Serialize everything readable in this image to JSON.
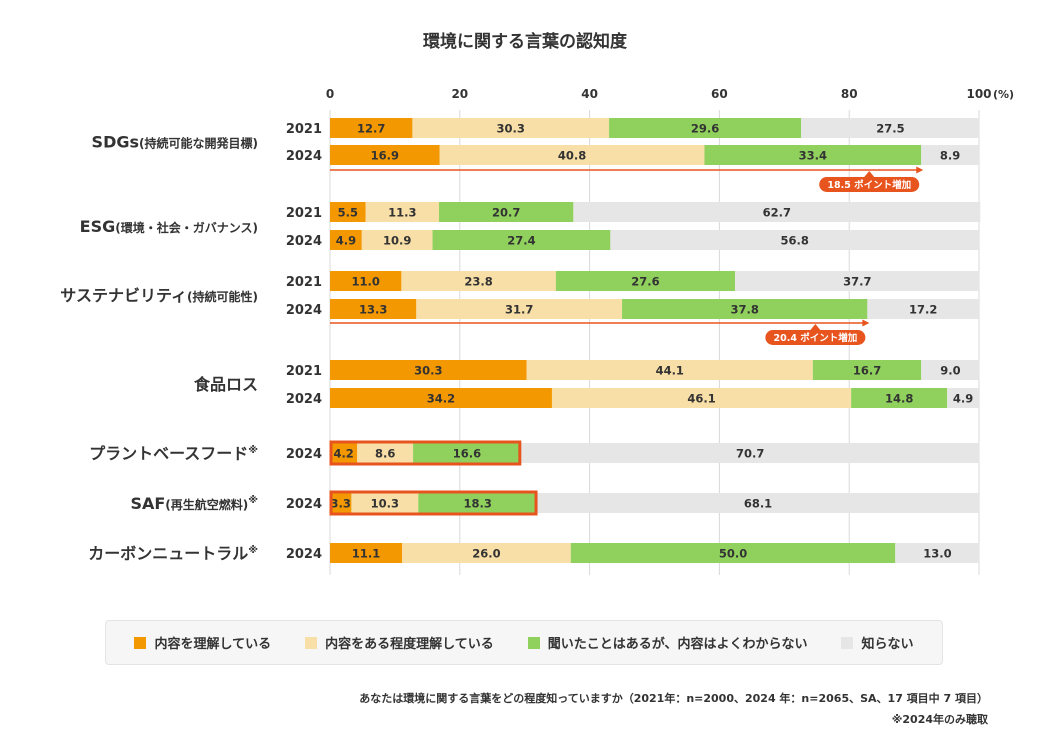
{
  "chart_data": {
    "type": "bar",
    "orientation": "horizontal",
    "stacked": true,
    "title": "環境に関する言葉の認知度",
    "x_ticks": [
      "0",
      "20",
      "40",
      "60",
      "80",
      "100"
    ],
    "x_unit": "(%)",
    "xlim": [
      0,
      100
    ],
    "grid": true,
    "series": [
      {
        "name": "内容を理解している",
        "color": "#f39800"
      },
      {
        "name": "内容をある程度理解している",
        "color": "#f8dea7"
      },
      {
        "name": "聞いたことはあるが、内容はよくわからない",
        "color": "#8fd15c"
      },
      {
        "name": "知らない",
        "color": "#e6e6e6"
      }
    ],
    "groups": [
      {
        "label": "SDGs",
        "sublabel": "(持続可能な開発目標)",
        "note": "",
        "rows": [
          {
            "year": "2021",
            "values": [
              12.7,
              30.3,
              29.6,
              27.5
            ],
            "labels": [
              "12.7",
              "30.3",
              "29.6",
              "27.5"
            ]
          },
          {
            "year": "2024",
            "values": [
              16.9,
              40.8,
              33.4,
              8.9
            ],
            "labels": [
              "16.9",
              "40.8",
              "33.4",
              "8.9"
            ]
          }
        ],
        "annotation": "18.5 ポイント増加"
      },
      {
        "label": "ESG",
        "sublabel": "(環境・社会・ガバナンス)",
        "note": "",
        "rows": [
          {
            "year": "2021",
            "values": [
              5.5,
              11.3,
              20.7,
              62.7
            ],
            "labels": [
              "5.5",
              "11.3",
              "20.7",
              "62.7"
            ]
          },
          {
            "year": "2024",
            "values": [
              4.9,
              10.9,
              27.4,
              56.8
            ],
            "labels": [
              "4.9",
              "10.9",
              "27.4",
              "56.8"
            ]
          }
        ]
      },
      {
        "label": "サステナビリティ",
        "sublabel": "(持続可能性)",
        "note": "",
        "rows": [
          {
            "year": "2021",
            "values": [
              11.0,
              23.8,
              27.6,
              37.7
            ],
            "labels": [
              "11.0",
              "23.8",
              "27.6",
              "37.7"
            ]
          },
          {
            "year": "2024",
            "values": [
              13.3,
              31.7,
              37.8,
              17.2
            ],
            "labels": [
              "13.3",
              "31.7",
              "37.8",
              "17.2"
            ]
          }
        ],
        "annotation": "20.4 ポイント増加"
      },
      {
        "label": "食品ロス",
        "sublabel": "",
        "note": "",
        "rows": [
          {
            "year": "2021",
            "values": [
              30.3,
              44.1,
              16.7,
              9.0
            ],
            "labels": [
              "30.3",
              "44.1",
              "16.7",
              "9.0"
            ]
          },
          {
            "year": "2024",
            "values": [
              34.2,
              46.1,
              14.8,
              4.9
            ],
            "labels": [
              "34.2",
              "46.1",
              "14.8",
              "4.9"
            ]
          }
        ]
      },
      {
        "label": "プラントベースフード",
        "sublabel": "",
        "note": "※",
        "rows": [
          {
            "year": "2024",
            "values": [
              4.2,
              8.6,
              16.6,
              70.7
            ],
            "labels": [
              "4.2",
              "8.6",
              "16.6",
              "70.7"
            ],
            "highlight": true
          }
        ]
      },
      {
        "label": "SAF",
        "sublabel": "(再生航空燃料)",
        "note": "※",
        "rows": [
          {
            "year": "2024",
            "values": [
              3.3,
              10.3,
              18.3,
              68.1
            ],
            "labels": [
              "3.3",
              "10.3",
              "18.3",
              "68.1"
            ],
            "highlight": true
          }
        ]
      },
      {
        "label": "カーボンニュートラル",
        "sublabel": "",
        "note": "※",
        "rows": [
          {
            "year": "2024",
            "values": [
              11.1,
              26.0,
              50.0,
              13.0
            ],
            "labels": [
              "11.1",
              "26.0",
              "50.0",
              "13.0"
            ]
          }
        ]
      }
    ],
    "highlight_color": "#e8541e",
    "annotation_color": "#e8541e"
  },
  "footnote": {
    "line1": "あなたは環境に関する言葉をどの程度知っていますか（2021年：n=2000、2024 年：n=2065、SA、17 項目中 7 項目）",
    "line2": "※2024年のみ聴取"
  }
}
